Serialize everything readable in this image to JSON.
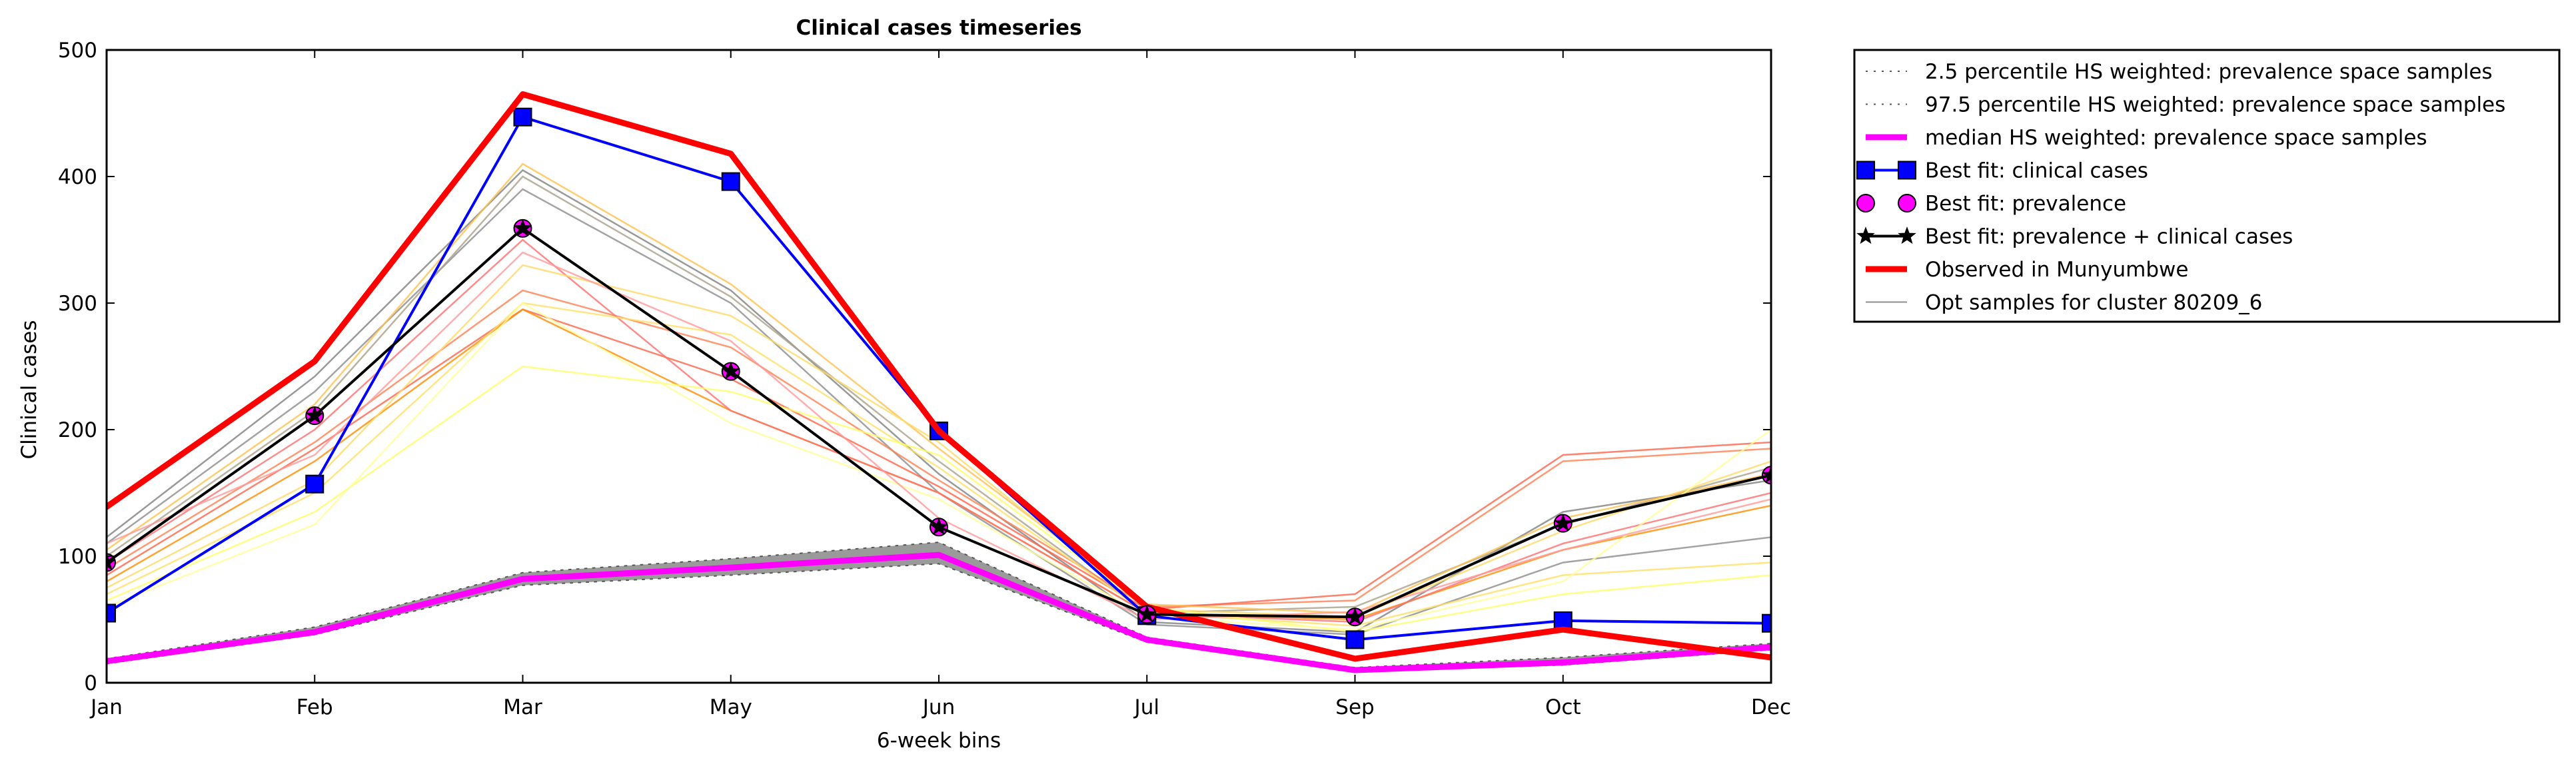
{
  "chart_data": {
    "type": "line",
    "title": "Clinical cases timeseries",
    "xlabel": "6-week bins",
    "ylabel": "Clinical cases",
    "categories": [
      "Jan",
      "Feb",
      "Mar",
      "May",
      "Jun",
      "Jul",
      "Sep",
      "Oct",
      "Dec"
    ],
    "ylim": [
      0,
      500
    ],
    "yticks": [
      "0",
      "100",
      "200",
      "300",
      "400",
      "500"
    ],
    "grid": false,
    "legend_position": "outside-right",
    "band": {
      "lower": [
        15,
        38,
        77,
        85,
        94,
        32,
        9,
        14,
        26
      ],
      "upper": [
        19,
        44,
        87,
        98,
        111,
        36,
        12,
        20,
        31
      ],
      "color": "#888888"
    },
    "samples": [
      {
        "values": [
          115,
          242,
          405,
          310,
          165,
          48,
          40,
          135,
          160
        ],
        "color": "#7f7f7f"
      },
      {
        "values": [
          110,
          230,
          390,
          300,
          150,
          46,
          38,
          95,
          115
        ],
        "color": "#8c8c8c"
      },
      {
        "values": [
          100,
          215,
          400,
          305,
          175,
          55,
          60,
          125,
          170
        ],
        "color": "#a8a08a"
      },
      {
        "values": [
          90,
          190,
          310,
          265,
          160,
          60,
          65,
          175,
          185
        ],
        "color": "#ff7f50"
      },
      {
        "values": [
          85,
          185,
          295,
          240,
          155,
          58,
          70,
          180,
          190
        ],
        "color": "#ff6347"
      },
      {
        "values": [
          80,
          175,
          295,
          215,
          150,
          55,
          50,
          105,
          140
        ],
        "color": "#ff8c00"
      },
      {
        "values": [
          95,
          200,
          350,
          215,
          150,
          55,
          48,
          110,
          150
        ],
        "color": "#ff6f6f"
      },
      {
        "values": [
          105,
          220,
          410,
          315,
          185,
          62,
          55,
          130,
          165
        ],
        "color": "#ffc04d"
      },
      {
        "values": [
          75,
          160,
          330,
          290,
          190,
          58,
          52,
          120,
          175
        ],
        "color": "#ffd966"
      },
      {
        "values": [
          70,
          150,
          300,
          275,
          170,
          55,
          45,
          85,
          95
        ],
        "color": "#ffe066"
      },
      {
        "values": [
          65,
          135,
          250,
          230,
          180,
          60,
          40,
          70,
          85
        ],
        "color": "#ffff66"
      },
      {
        "values": [
          60,
          125,
          300,
          205,
          145,
          52,
          42,
          80,
          200
        ],
        "color": "#ffff99"
      },
      {
        "values": [
          110,
          180,
          340,
          270,
          130,
          50,
          56,
          105,
          145
        ],
        "color": "#ff9999"
      }
    ],
    "series": [
      {
        "name": "2.5 percentile HS weighted: prevalence space samples",
        "values": [
          15,
          38,
          77,
          85,
          94,
          32,
          9,
          14,
          26
        ],
        "color": "#555555",
        "style": "dotted",
        "marker": "none",
        "width": 2
      },
      {
        "name": "97.5 percentile HS weighted: prevalence space samples",
        "values": [
          19,
          44,
          87,
          98,
          111,
          36,
          12,
          20,
          31
        ],
        "color": "#555555",
        "style": "dotted",
        "marker": "none",
        "width": 2
      },
      {
        "name": "median HS weighted: prevalence space samples",
        "values": [
          17,
          40,
          82,
          91,
          101,
          34,
          10,
          16,
          28
        ],
        "color": "#ff00ff",
        "style": "solid",
        "marker": "none",
        "width": 9
      },
      {
        "name": "Best fit: clinical cases",
        "values": [
          55,
          157,
          447,
          396,
          199,
          53,
          34,
          49,
          47
        ],
        "color": "#0000ff",
        "style": "solid",
        "marker": "square",
        "width": 4
      },
      {
        "name": "Best fit: prevalence",
        "values": [
          95,
          211,
          359,
          246,
          123,
          54,
          52,
          126,
          164
        ],
        "color": "#ff00ff",
        "style": "none",
        "marker": "circle",
        "width": 4
      },
      {
        "name": "Best fit: prevalence + clinical cases",
        "values": [
          95,
          211,
          359,
          246,
          123,
          54,
          52,
          126,
          164
        ],
        "color": "#000000",
        "style": "solid",
        "marker": "star",
        "width": 4
      },
      {
        "name": "Observed in Munyumbwe",
        "values": [
          139,
          254,
          465,
          418,
          199,
          60,
          19,
          42,
          20
        ],
        "color": "#ff0000",
        "style": "solid",
        "marker": "none",
        "width": 9
      },
      {
        "name": "Opt samples for cluster 80209_6",
        "values": null,
        "color": "#8c8c8c",
        "style": "solid",
        "marker": "none",
        "width": 2
      }
    ]
  }
}
